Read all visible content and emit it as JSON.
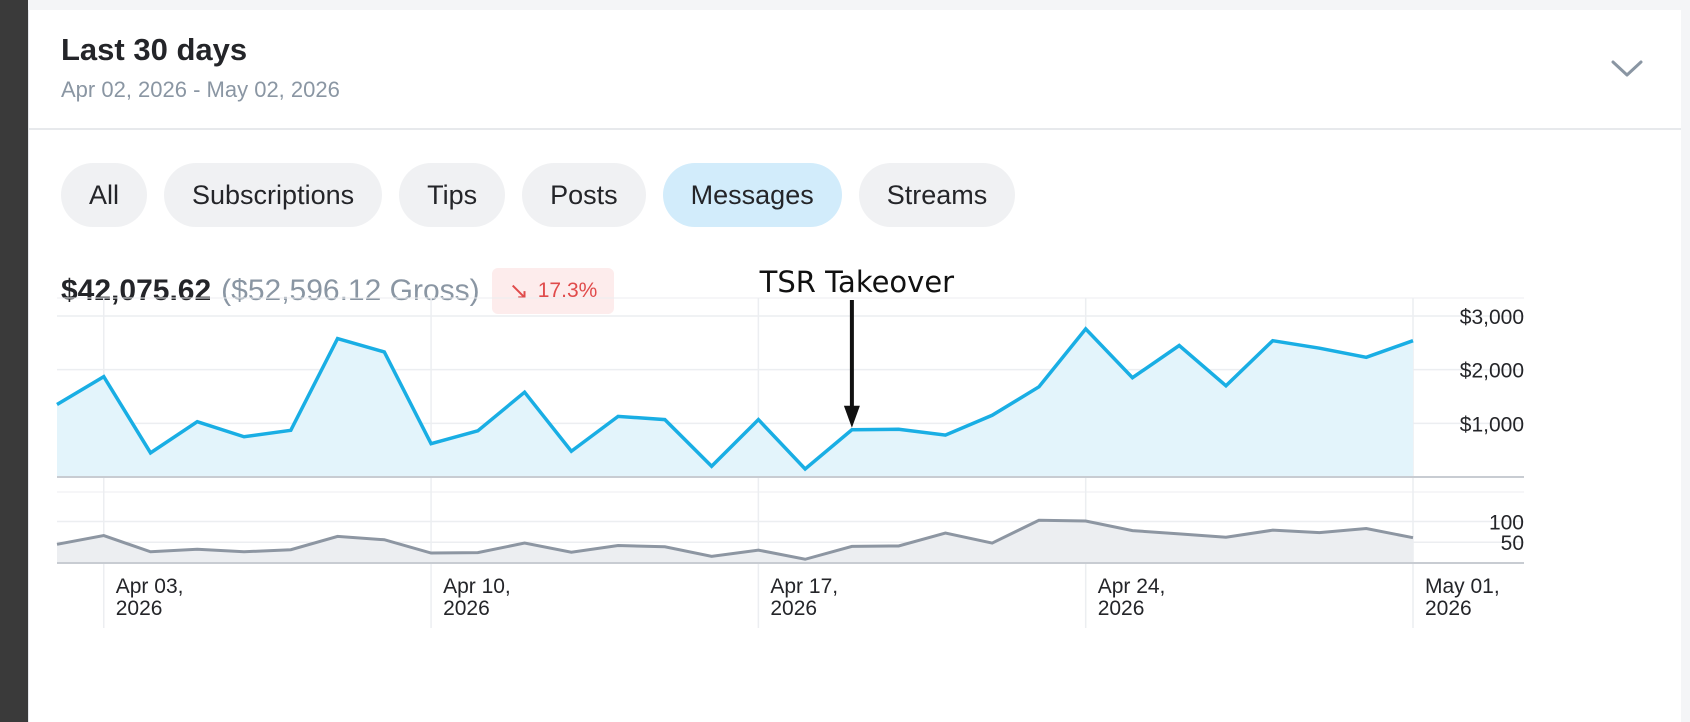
{
  "period": {
    "title": "Last 30 days",
    "range": "Apr 02, 2026 - May 02, 2026"
  },
  "tabs": [
    {
      "label": "All",
      "active": false
    },
    {
      "label": "Subscriptions",
      "active": false
    },
    {
      "label": "Tips",
      "active": false
    },
    {
      "label": "Posts",
      "active": false
    },
    {
      "label": "Messages",
      "active": true
    },
    {
      "label": "Streams",
      "active": false
    }
  ],
  "summary": {
    "net": "$42,075.62",
    "gross": "($52,596.12 Gross)",
    "change": "17.3%",
    "change_direction": "down"
  },
  "colors": {
    "earnings_line": "#19aee4",
    "earnings_fill": "#e3f4fb",
    "count_line": "#8d96a2",
    "count_fill": "#eceef1",
    "negative": "#e04b4b",
    "active_tab": "#d2ecfb"
  },
  "annotation": {
    "text": "TSR Takeover",
    "date": "Apr 19"
  },
  "chart_data": [
    {
      "type": "area",
      "x": [
        "Apr 02",
        "Apr 03",
        "Apr 04",
        "Apr 05",
        "Apr 06",
        "Apr 07",
        "Apr 08",
        "Apr 09",
        "Apr 10",
        "Apr 11",
        "Apr 12",
        "Apr 13",
        "Apr 14",
        "Apr 15",
        "Apr 16",
        "Apr 17",
        "Apr 18",
        "Apr 19",
        "Apr 20",
        "Apr 21",
        "Apr 22",
        "Apr 23",
        "Apr 24",
        "Apr 25",
        "Apr 26",
        "Apr 27",
        "Apr 28",
        "Apr 29",
        "Apr 30",
        "May 01"
      ],
      "values": [
        1350,
        1870,
        450,
        1030,
        750,
        870,
        2580,
        2330,
        620,
        860,
        1580,
        480,
        1130,
        1070,
        200,
        1070,
        150,
        880,
        890,
        780,
        1150,
        1680,
        2760,
        1850,
        2450,
        1700,
        2540,
        2400,
        2230,
        2540
      ],
      "yticks": [
        1000,
        2000,
        3000
      ],
      "ytick_labels": [
        "$1,000",
        "$2,000",
        "$3,000"
      ],
      "ylim": [
        0,
        3000
      ],
      "xtick_labels": [
        {
          "date": "Apr 03",
          "line1": "Apr 03,",
          "line2": "2026"
        },
        {
          "date": "Apr 10",
          "line1": "Apr 10,",
          "line2": "2026"
        },
        {
          "date": "Apr 17",
          "line1": "Apr 17,",
          "line2": "2026"
        },
        {
          "date": "Apr 24",
          "line1": "Apr 24,",
          "line2": "2026"
        },
        {
          "date": "May 01",
          "line1": "May 01,",
          "line2": "2026"
        }
      ],
      "grid": true
    },
    {
      "type": "area",
      "x": [
        "Apr 02",
        "Apr 03",
        "Apr 04",
        "Apr 05",
        "Apr 06",
        "Apr 07",
        "Apr 08",
        "Apr 09",
        "Apr 10",
        "Apr 11",
        "Apr 12",
        "Apr 13",
        "Apr 14",
        "Apr 15",
        "Apr 16",
        "Apr 17",
        "Apr 18",
        "Apr 19",
        "Apr 20",
        "Apr 21",
        "Apr 22",
        "Apr 23",
        "Apr 24",
        "Apr 25",
        "Apr 26",
        "Apr 27",
        "Apr 28",
        "Apr 29",
        "Apr 30",
        "May 01"
      ],
      "values": [
        45,
        66,
        27,
        33,
        27,
        32,
        64,
        56,
        24,
        25,
        48,
        26,
        42,
        39,
        16,
        31,
        9,
        40,
        41,
        72,
        48,
        103,
        101,
        78,
        70,
        62,
        79,
        73,
        83,
        61
      ],
      "yticks": [
        50,
        100
      ],
      "ytick_labels": [
        "50",
        "100"
      ],
      "ylim": [
        0,
        130
      ],
      "grid": true
    }
  ]
}
